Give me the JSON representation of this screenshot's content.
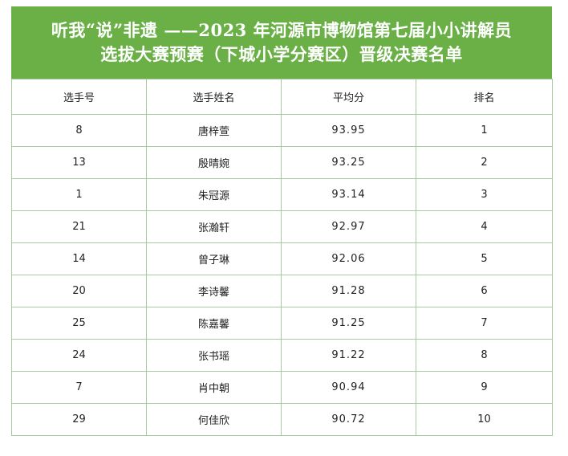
{
  "title": {
    "line1": "听我“说”非遗 ——2023 年河源市博物馆第七届小小讲解员",
    "line2": "选拔大赛预赛（下城小学分赛区）晋级决赛名单"
  },
  "table": {
    "headers": [
      "选手号",
      "选手姓名",
      "平均分",
      "排名"
    ],
    "rows": [
      [
        "8",
        "唐梓萱",
        "93.95",
        "1"
      ],
      [
        "13",
        "殷晴婉",
        "93.25",
        "2"
      ],
      [
        "1",
        "朱冠源",
        "93.14",
        "3"
      ],
      [
        "21",
        "张瀚轩",
        "92.97",
        "4"
      ],
      [
        "14",
        "曾子琳",
        "92.06",
        "5"
      ],
      [
        "20",
        "李诗馨",
        "91.28",
        "6"
      ],
      [
        "25",
        "陈嘉馨",
        "91.25",
        "7"
      ],
      [
        "24",
        "张书瑶",
        "91.22",
        "8"
      ],
      [
        "7",
        "肖中朝",
        "90.94",
        "9"
      ],
      [
        "29",
        "何佳欣",
        "90.72",
        "10"
      ]
    ]
  },
  "colors": {
    "header_background": "#6ab047",
    "header_text": "#ffffff",
    "grid_lines": "#a9c9a0"
  }
}
